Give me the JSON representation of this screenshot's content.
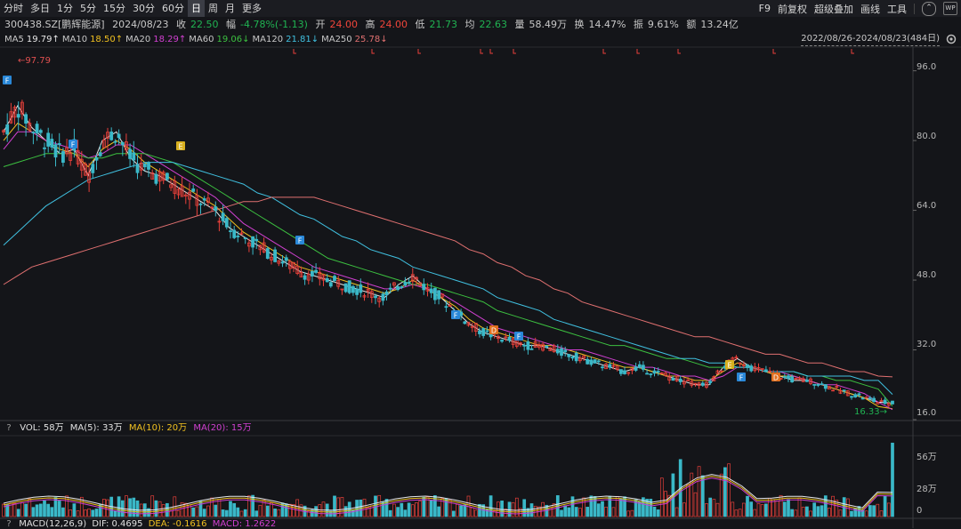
{
  "toolbar": {
    "tabs": [
      "分时",
      "多日",
      "1分",
      "5分",
      "15分",
      "30分",
      "60分",
      "日",
      "周",
      "月",
      "更多"
    ],
    "active_tab": "日",
    "right_tools": [
      "F9",
      "前复权",
      "超级叠加",
      "画线",
      "工具"
    ]
  },
  "quote": {
    "code": "300438.SZ[鹏辉能源]",
    "date": "2024/08/23",
    "close_label": "收",
    "close": "22.50",
    "change_label": "幅",
    "change": "-4.78%(-1.13)",
    "open_label": "开",
    "open": "24.00",
    "high_label": "高",
    "high": "24.00",
    "low_label": "低",
    "low": "21.73",
    "avg_label": "均",
    "avg": "22.63",
    "vol_label": "量",
    "vol": "58.49万",
    "turnover_label": "换",
    "turnover": "14.47%",
    "amp_label": "振",
    "amp": "9.61%",
    "amount_label": "额",
    "amount": "13.24亿"
  },
  "ma": [
    {
      "name": "MA5",
      "value": "19.79↑",
      "color": "#e8e8e8"
    },
    {
      "name": "MA10",
      "value": "18.50↑",
      "color": "#f0c020"
    },
    {
      "name": "MA20",
      "value": "18.29↑",
      "color": "#d040d0"
    },
    {
      "name": "MA60",
      "value": "19.06↓",
      "color": "#3cc040"
    },
    {
      "name": "MA120",
      "value": "21.81↓",
      "color": "#40c0e0"
    },
    {
      "name": "MA250",
      "value": "25.78↓",
      "color": "#e07070"
    }
  ],
  "range": "2022/08/26-2024/08/23(484日)",
  "price_axis": [
    "96.0",
    "80.0",
    "64.0",
    "48.0",
    "32.0",
    "16.0"
  ],
  "annotations": {
    "high": "←97.79",
    "low": "16.33→"
  },
  "markers": [
    {
      "label": "F",
      "color": "#2a88d8"
    },
    {
      "label": "F",
      "color": "#2a88d8"
    },
    {
      "label": "E",
      "color": "#d8b020"
    },
    {
      "label": "F",
      "color": "#2a88d8"
    },
    {
      "label": "F",
      "color": "#2a88d8"
    },
    {
      "label": "D",
      "color": "#e07020"
    },
    {
      "label": "F",
      "color": "#2a88d8"
    },
    {
      "label": "E",
      "color": "#d8b020"
    },
    {
      "label": "F",
      "color": "#2a88d8"
    },
    {
      "label": "D",
      "color": "#e07020"
    }
  ],
  "volume": {
    "legend_q": "?",
    "vol": "VOL: 58万",
    "ma5": "MA(5): 33万",
    "ma10": "MA(10): 20万",
    "ma20": "MA(20): 15万",
    "axis": [
      "56万",
      "28万",
      "0"
    ]
  },
  "macd": {
    "legend_q": "?",
    "title": "MACD(12,26,9)",
    "dif": "DIF: 0.4695",
    "dea": "DEA: -0.1616",
    "macd": "MACD: 1.2622"
  },
  "chart_data": {
    "type": "candlestick",
    "x_range": [
      "2022/08/26",
      "2024/08/23"
    ],
    "ylim": [
      16,
      100
    ],
    "high": 97.79,
    "low": 16.33,
    "series": [
      {
        "name": "MA5",
        "values": [
          82,
          88,
          83,
          80,
          77,
          78,
          72,
          80,
          82,
          76,
          73,
          72,
          70,
          68,
          66,
          64,
          60,
          58,
          56,
          54,
          52,
          50,
          49,
          48,
          47,
          46,
          45,
          44,
          47,
          49,
          46,
          44,
          41,
          38,
          36,
          35,
          34,
          33,
          33,
          32,
          31,
          30,
          29,
          28,
          27,
          28,
          27,
          26,
          25,
          24,
          24,
          28,
          30,
          28,
          27,
          26,
          25,
          25,
          24,
          23,
          22,
          21,
          20,
          19.8
        ]
      },
      {
        "name": "MA10",
        "values": [
          80,
          84,
          82,
          80,
          78,
          77,
          74,
          78,
          80,
          78,
          75,
          73,
          71,
          69,
          67,
          65,
          62,
          59,
          57,
          55,
          53,
          51,
          50,
          49,
          48,
          47,
          46,
          45,
          46,
          48,
          46,
          44,
          42,
          39,
          37,
          36,
          35,
          34,
          33,
          33,
          32,
          31,
          30,
          29,
          28,
          28,
          27,
          26,
          26,
          25,
          25,
          27,
          29,
          28,
          27,
          26,
          26,
          25,
          24,
          23,
          22,
          21,
          19,
          18.5
        ]
      },
      {
        "name": "MA20",
        "values": [
          78,
          82,
          82,
          80,
          79,
          78,
          76,
          77,
          79,
          79,
          77,
          75,
          73,
          71,
          69,
          67,
          64,
          61,
          59,
          57,
          55,
          53,
          51,
          50,
          49,
          48,
          47,
          46,
          46,
          47,
          46,
          45,
          43,
          41,
          39,
          37,
          36,
          35,
          34,
          33,
          32,
          32,
          31,
          30,
          29,
          28,
          28,
          27,
          26,
          26,
          25,
          26,
          28,
          28,
          27,
          27,
          26,
          25,
          24,
          24,
          23,
          22,
          20,
          18.3
        ]
      },
      {
        "name": "MA60",
        "values": [
          74,
          75,
          76,
          77,
          77,
          77,
          76,
          76,
          77,
          77,
          77,
          76,
          75,
          73,
          71,
          69,
          67,
          65,
          63,
          61,
          59,
          57,
          55,
          53,
          52,
          51,
          50,
          49,
          48,
          47,
          47,
          46,
          45,
          44,
          43,
          41,
          40,
          39,
          38,
          37,
          36,
          35,
          34,
          33,
          33,
          32,
          31,
          30,
          30,
          29,
          28,
          28,
          28,
          28,
          27,
          27,
          27,
          26,
          26,
          25,
          25,
          24,
          23,
          19.1
        ]
      },
      {
        "name": "MA120",
        "values": [
          56,
          59,
          62,
          65,
          67,
          69,
          71,
          72,
          73,
          74,
          75,
          75,
          75,
          74,
          73,
          72,
          71,
          70,
          68,
          67,
          65,
          63,
          62,
          60,
          58,
          57,
          55,
          54,
          53,
          51,
          50,
          49,
          48,
          47,
          46,
          44,
          43,
          42,
          41,
          39,
          38,
          37,
          36,
          35,
          34,
          33,
          32,
          31,
          30,
          30,
          29,
          29,
          28,
          28,
          27,
          27,
          27,
          26,
          26,
          26,
          26,
          25,
          25,
          21.8
        ]
      },
      {
        "name": "MA250",
        "values": [
          47,
          49,
          51,
          52,
          53,
          54,
          55,
          56,
          57,
          58,
          59,
          60,
          61,
          62,
          63,
          64,
          65,
          66,
          66,
          67,
          67,
          67,
          67,
          66,
          65,
          64,
          63,
          62,
          61,
          60,
          59,
          58,
          57,
          55,
          54,
          52,
          51,
          49,
          48,
          46,
          45,
          43,
          42,
          41,
          40,
          39,
          38,
          37,
          36,
          35,
          35,
          34,
          33,
          32,
          31,
          31,
          30,
          29,
          29,
          28,
          27,
          27,
          26,
          25.8
        ]
      }
    ],
    "volume_ylim": [
      0,
      60
    ]
  }
}
